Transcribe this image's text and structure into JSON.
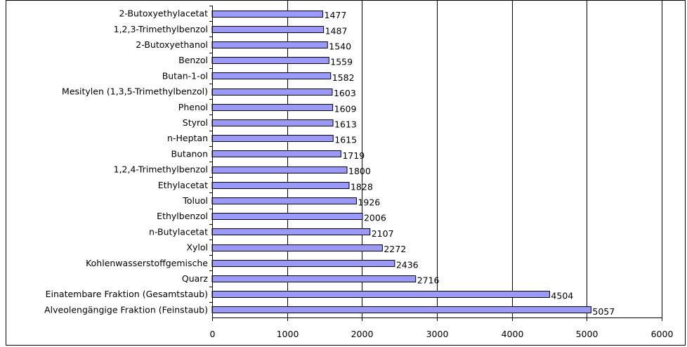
{
  "chart_data": {
    "type": "bar",
    "orientation": "horizontal",
    "categories": [
      "2-Butoxyethylacetat",
      "1,2,3-Trimethylbenzol",
      "2-Butoxyethanol",
      "Benzol",
      "Butan-1-ol",
      "Mesitylen (1,3,5-Trimethylbenzol)",
      "Phenol",
      "Styrol",
      "n-Heptan",
      "Butanon",
      "1,2,4-Trimethylbenzol",
      "Ethylacetat",
      "Toluol",
      "Ethylbenzol",
      "n-Butylacetat",
      "Xylol",
      "Kohlenwasserstoffgemische",
      "Quarz",
      "Einatembare Fraktion (Gesamtstaub)",
      "Alveolengängige Fraktion (Feinstaub)"
    ],
    "values": [
      1477,
      1487,
      1540,
      1559,
      1582,
      1603,
      1609,
      1613,
      1615,
      1719,
      1800,
      1828,
      1926,
      2006,
      2107,
      2272,
      2436,
      2716,
      4504,
      5057
    ],
    "value_labels": [
      "1477",
      "1487",
      "1540",
      "1559",
      "1582",
      "1603",
      "1609",
      "1613",
      "1615",
      "1719",
      "1800",
      "1828",
      "1926",
      "2006",
      "2107",
      "2272",
      "2436",
      "2716",
      "4504",
      "5057"
    ],
    "xlim": [
      0,
      6000
    ],
    "x_ticks": [
      "0",
      "1000",
      "2000",
      "3000",
      "4000",
      "5000",
      "6000"
    ],
    "x_tick_values": [
      0,
      1000,
      2000,
      3000,
      4000,
      5000,
      6000
    ],
    "grid": true,
    "bar_color": "#9999ff",
    "bar_edge_color": "#000000"
  }
}
